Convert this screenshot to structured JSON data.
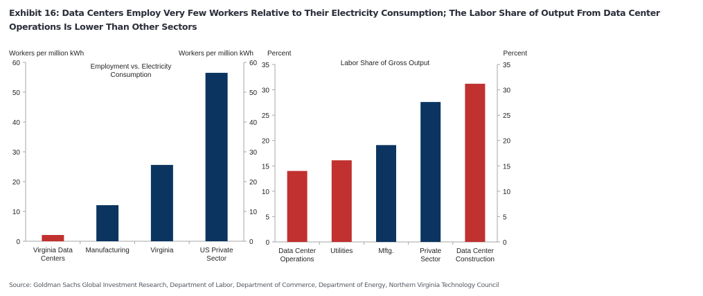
{
  "exhibit": {
    "title": "Exhibit 16: Data Centers Employ Very Few Workers Relative to Their Electricity Consumption; The Labor Share of Output From Data Center Operations Is Lower Than Other Sectors",
    "source": "Source: Goldman Sachs Global Investment Research, Department of Labor, Department of Commerce, Department of Energy, Northern Virginia Technology Council"
  },
  "colors": {
    "highlight": "#c0312f",
    "base": "#0b3560",
    "axis": "#a6a6a6"
  },
  "chart_data": [
    {
      "type": "bar",
      "title": "Employment vs. Electricity Consumption",
      "title_lines": [
        "Employment vs. Electricity",
        "Consumption"
      ],
      "ylabel_left": "Workers per million kWh",
      "ylabel_right": "Workers per million kWh",
      "ylim": [
        0,
        60
      ],
      "yticks": [
        0,
        10,
        20,
        30,
        40,
        50,
        60
      ],
      "categories": [
        [
          "Virginia Data",
          "Centers"
        ],
        [
          "Manufacturing"
        ],
        [
          "Virginia"
        ],
        [
          "US Private",
          "Sector"
        ]
      ],
      "values": [
        2.1,
        12.1,
        25.6,
        56.5
      ],
      "highlight": [
        true,
        false,
        false,
        false
      ],
      "grid": false,
      "legend": "none"
    },
    {
      "type": "bar",
      "title": "Labor Share of Gross Output",
      "title_lines": [
        "Labor Share of Gross Output"
      ],
      "ylabel_left": "Percent",
      "ylabel_right": "Percent",
      "ylim": [
        0,
        35
      ],
      "yticks": [
        0,
        5,
        10,
        15,
        20,
        25,
        30,
        35
      ],
      "categories": [
        [
          "Data Center",
          "Operations"
        ],
        [
          "Utilities"
        ],
        [
          "Mftg."
        ],
        [
          "Private",
          "Sector"
        ],
        [
          "Data Center",
          "Construction"
        ]
      ],
      "values": [
        14.0,
        16.1,
        19.1,
        27.6,
        31.2
      ],
      "highlight": [
        true,
        true,
        false,
        false,
        true
      ],
      "grid": false,
      "legend": "none"
    }
  ]
}
